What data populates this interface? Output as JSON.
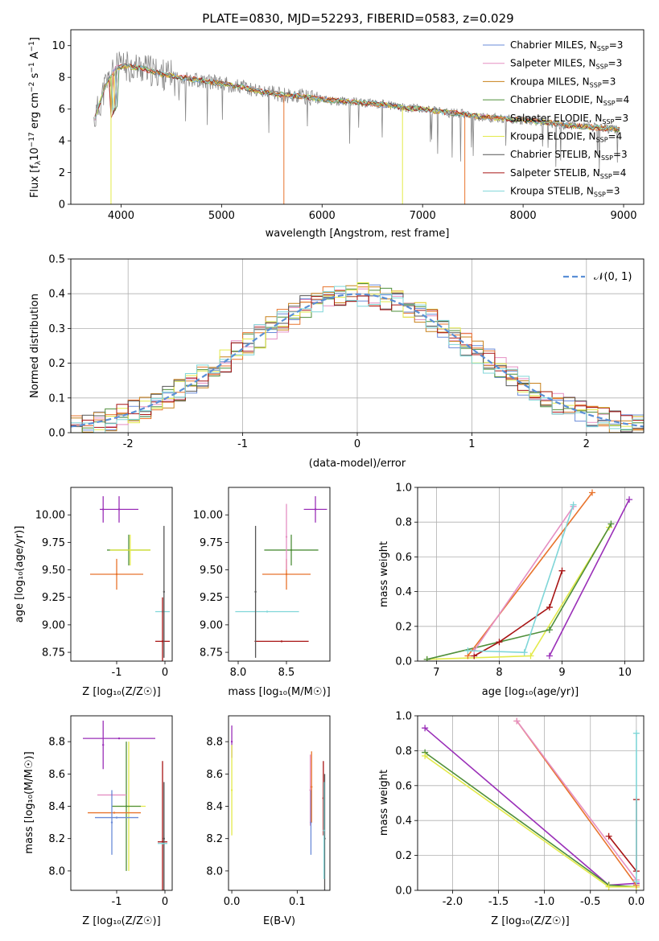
{
  "title": "PLATE=0830, MJD=52293, FIBERID=0583, z=0.029",
  "models": [
    {
      "name": "Chabrier MILES",
      "nssp": "3",
      "color": "#6a8bd8"
    },
    {
      "name": "Salpeter MILES",
      "nssp": "3",
      "color": "#e58fc2"
    },
    {
      "name": "Kroupa MILES",
      "nssp": "3",
      "color": "#c8801a"
    },
    {
      "name": "Chabrier ELODIE",
      "nssp": "4",
      "color": "#4f8f3a"
    },
    {
      "name": "Salpeter ELODIE",
      "nssp": "3",
      "color": "#e8742d"
    },
    {
      "name": "Kroupa ELODIE",
      "nssp": "4",
      "color": "#e3ea4a"
    },
    {
      "name": "Chabrier STELIB",
      "nssp": "3",
      "color": "#555555"
    },
    {
      "name": "Salpeter STELIB",
      "nssp": "4",
      "color": "#a81414"
    },
    {
      "name": "Kroupa STELIB",
      "nssp": "3",
      "color": "#7fd6d8"
    }
  ],
  "chart_data": [
    {
      "panel": "spectrum",
      "type": "line",
      "xlabel": "wavelength [Angstrom, rest frame]",
      "ylabel": "Flux [f_λ 10^-17 erg cm^-2 s^-1 A^-1]",
      "xlim": [
        3500,
        9200
      ],
      "ylim": [
        0,
        11
      ],
      "xticks": [
        4000,
        5000,
        6000,
        7000,
        8000,
        9000
      ],
      "yticks": [
        0,
        2,
        4,
        6,
        8,
        10
      ],
      "legend_position": "top-right",
      "continuum_x": [
        3730,
        3850,
        3950,
        4050,
        4200,
        4400,
        4600,
        4800,
        5000,
        5200,
        5400,
        5600,
        5800,
        6000,
        6200,
        6400,
        6600,
        6800,
        7000,
        7200,
        7400,
        7600,
        7800,
        8000,
        8200,
        8400,
        8600,
        8800,
        8950
      ],
      "continuum_y": [
        5.2,
        7.6,
        8.6,
        8.7,
        8.6,
        8.2,
        8.0,
        7.8,
        7.6,
        7.4,
        7.1,
        6.9,
        6.8,
        6.6,
        6.5,
        6.4,
        6.3,
        6.1,
        6.0,
        5.8,
        5.7,
        5.5,
        5.4,
        5.3,
        5.2,
        5.0,
        4.9,
        4.8,
        4.7
      ],
      "model_dips": [
        {
          "x": 5620,
          "y": 0.0,
          "color": "#e8742d"
        },
        {
          "x": 6800,
          "y": 0.0,
          "color": "#e3ea4a"
        },
        {
          "x": 7420,
          "y": 0.0,
          "color": "#e8742d"
        },
        {
          "x": 3900,
          "y": 0.0,
          "color": "#e3ea4a"
        }
      ]
    },
    {
      "panel": "residuals",
      "type": "line",
      "xlabel": "(data-model)/error",
      "ylabel": "Normed distribution",
      "xlim": [
        -2.5,
        2.5
      ],
      "ylim": [
        0,
        0.5
      ],
      "xticks": [
        -2,
        -1,
        0,
        1,
        2
      ],
      "yticks": [
        0.0,
        0.1,
        0.2,
        0.3,
        0.4,
        0.5
      ],
      "gaussian_label": "𝒩(0, 1)",
      "legend_position": "top-right",
      "grid": true
    },
    {
      "panel": "age-vs-Z",
      "type": "scatter",
      "xlabel": "Z [log10(Z/Z☉)]",
      "ylabel": "age [log10(age/yr)]",
      "xlim": [
        -1.95,
        0.15
      ],
      "ylim": [
        8.67,
        10.25
      ],
      "xticks": [
        -1,
        0
      ],
      "yticks": [
        8.75,
        9.0,
        9.25,
        9.5,
        9.75,
        10.0
      ],
      "points": [
        {
          "x": -0.95,
          "y": 10.05,
          "xerr": 0.4,
          "yerr": 0.12,
          "color": "#9a2fb8"
        },
        {
          "x": -1.28,
          "y": 10.05,
          "xerr": 0.0,
          "yerr": 0.12,
          "color": "#9a2fb8"
        },
        {
          "x": -0.75,
          "y": 9.68,
          "xerr": 0.45,
          "yerr": 0.14,
          "color": "#4f8f3a"
        },
        {
          "x": -0.72,
          "y": 9.68,
          "xerr": 0.42,
          "yerr": 0.14,
          "color": "#e3ea4a"
        },
        {
          "x": -1.0,
          "y": 9.46,
          "xerr": 0.55,
          "yerr": 0.14,
          "color": "#e8742d"
        },
        {
          "x": -0.05,
          "y": 9.12,
          "xerr": 0.15,
          "yerr": 0.0,
          "color": "#7fd6d8"
        },
        {
          "x": -0.05,
          "y": 8.85,
          "xerr": 0.15,
          "yerr": 0.4,
          "color": "#a81414"
        },
        {
          "x": -0.02,
          "y": 9.3,
          "xerr": 0.0,
          "yerr": 0.6,
          "color": "#555555"
        }
      ]
    },
    {
      "panel": "age-vs-mass",
      "type": "scatter",
      "xlabel": "mass [log10(M/M☉)]",
      "ylabel": "",
      "xlim": [
        7.9,
        8.95
      ],
      "ylim": [
        8.67,
        10.25
      ],
      "xticks": [
        8.0,
        8.5
      ],
      "yticks": [
        8.75,
        9.0,
        9.25,
        9.5,
        9.75,
        10.0
      ],
      "points": [
        {
          "x": 8.8,
          "y": 10.05,
          "xerr": 0.12,
          "yerr": 0.12,
          "color": "#9a2fb8"
        },
        {
          "x": 8.55,
          "y": 9.68,
          "xerr": 0.28,
          "yerr": 0.14,
          "color": "#4f8f3a"
        },
        {
          "x": 8.5,
          "y": 9.46,
          "xerr": 0.25,
          "yerr": 0.14,
          "color": "#e8742d"
        },
        {
          "x": 8.3,
          "y": 9.12,
          "xerr": 0.33,
          "yerr": 0.0,
          "color": "#7fd6d8"
        },
        {
          "x": 8.45,
          "y": 8.85,
          "xerr": 0.28,
          "yerr": 0.0,
          "color": "#a81414"
        },
        {
          "x": 8.18,
          "y": 9.3,
          "xerr": 0.0,
          "yerr": 0.6,
          "color": "#555555"
        },
        {
          "x": 8.5,
          "y": 9.8,
          "xerr": 0.0,
          "yerr": 0.3,
          "color": "#e58fc2"
        }
      ]
    },
    {
      "panel": "mass-weight-vs-age",
      "type": "line",
      "xlabel": "age [log10(age/yr)]",
      "ylabel": "mass weight",
      "xlim": [
        6.7,
        10.3
      ],
      "ylim": [
        0,
        1
      ],
      "xticks": [
        7,
        8,
        9,
        10
      ],
      "yticks": [
        0.0,
        0.2,
        0.4,
        0.6,
        0.8,
        1.0
      ],
      "grid": true,
      "series": [
        {
          "color": "#e3ea4a",
          "x": [
            6.85,
            8.5,
            9.75
          ],
          "y": [
            0.01,
            0.03,
            0.77
          ]
        },
        {
          "color": "#4f8f3a",
          "x": [
            6.85,
            8.8,
            9.78
          ],
          "y": [
            0.01,
            0.18,
            0.79
          ]
        },
        {
          "color": "#9a2fb8",
          "x": [
            8.8,
            10.07
          ],
          "y": [
            0.03,
            0.93
          ]
        },
        {
          "color": "#a81414",
          "x": [
            7.6,
            8.0,
            8.8,
            9.0
          ],
          "y": [
            0.03,
            0.11,
            0.31,
            0.52
          ]
        },
        {
          "color": "#e8742d",
          "x": [
            7.5,
            9.48
          ],
          "y": [
            0.03,
            0.97
          ]
        },
        {
          "color": "#e58fc2",
          "x": [
            7.6,
            9.18
          ],
          "y": [
            0.06,
            0.89
          ]
        },
        {
          "color": "#7fd6d8",
          "x": [
            7.5,
            8.4,
            9.18
          ],
          "y": [
            0.06,
            0.05,
            0.9
          ]
        }
      ]
    },
    {
      "panel": "mass-vs-Z",
      "type": "scatter",
      "xlabel": "Z [log10(Z/Z☉)]",
      "ylabel": "mass [log10(M/M☉)]",
      "xlim": [
        -1.95,
        0.15
      ],
      "ylim": [
        7.88,
        8.96
      ],
      "xticks": [
        -1,
        0
      ],
      "yticks": [
        8.0,
        8.2,
        8.4,
        8.6,
        8.8
      ],
      "points": [
        {
          "x": -0.95,
          "y": 8.82,
          "xerr": 0.75,
          "yerr": 0.0,
          "color": "#9a2fb8"
        },
        {
          "x": -1.28,
          "y": 8.78,
          "xerr": 0.0,
          "yerr": 0.15,
          "color": "#9a2fb8"
        },
        {
          "x": -0.75,
          "y": 8.4,
          "xerr": 0.35,
          "yerr": 0.4,
          "color": "#e3ea4a"
        },
        {
          "x": -0.8,
          "y": 8.4,
          "xerr": 0.3,
          "yerr": 0.4,
          "color": "#4f8f3a"
        },
        {
          "x": -1.1,
          "y": 8.47,
          "xerr": 0.3,
          "yerr": 0.0,
          "color": "#e58fc2"
        },
        {
          "x": -1.05,
          "y": 8.36,
          "xerr": 0.55,
          "yerr": 0.0,
          "color": "#e8742d"
        },
        {
          "x": -1.0,
          "y": 8.33,
          "xerr": 0.45,
          "yerr": 0.0,
          "color": "#6a8bd8"
        },
        {
          "x": -1.1,
          "y": 8.3,
          "xerr": 0.0,
          "yerr": 0.2,
          "color": "#6a8bd8"
        },
        {
          "x": -0.05,
          "y": 8.18,
          "xerr": 0.1,
          "yerr": 0.5,
          "color": "#a81414"
        },
        {
          "x": -0.02,
          "y": 8.2,
          "xerr": 0.0,
          "yerr": 0.35,
          "color": "#555555"
        },
        {
          "x": -0.05,
          "y": 8.17,
          "xerr": 0.1,
          "yerr": 0.0,
          "color": "#7fd6d8"
        }
      ]
    },
    {
      "panel": "mass-vs-EBV",
      "type": "scatter",
      "xlabel": "E(B-V)",
      "ylabel": "",
      "xlim": [
        -0.005,
        0.15
      ],
      "ylim": [
        7.88,
        8.96
      ],
      "xticks": [
        0.0,
        0.1
      ],
      "yticks": [
        8.0,
        8.2,
        8.4,
        8.6,
        8.8
      ],
      "points": [
        {
          "x": 0.0,
          "y": 8.8,
          "xerr": 0.0,
          "yerr": 0.1,
          "color": "#9a2fb8"
        },
        {
          "x": 0.0,
          "y": 8.5,
          "xerr": 0.0,
          "yerr": 0.28,
          "color": "#e3ea4a"
        },
        {
          "x": 0.12,
          "y": 8.5,
          "xerr": 0.0,
          "yerr": 0.22,
          "color": "#e58fc2"
        },
        {
          "x": 0.121,
          "y": 8.3,
          "xerr": 0.0,
          "yerr": 0.2,
          "color": "#6a8bd8"
        },
        {
          "x": 0.122,
          "y": 8.52,
          "xerr": 0.0,
          "yerr": 0.22,
          "color": "#e8742d"
        },
        {
          "x": 0.14,
          "y": 8.45,
          "xerr": 0.0,
          "yerr": 0.23,
          "color": "#a81414"
        },
        {
          "x": 0.142,
          "y": 8.2,
          "xerr": 0.0,
          "yerr": 0.4,
          "color": "#555555"
        },
        {
          "x": 0.141,
          "y": 8.25,
          "xerr": 0.0,
          "yerr": 0.3,
          "color": "#7fd6d8"
        }
      ]
    },
    {
      "panel": "mass-weight-vs-Z",
      "type": "line",
      "xlabel": "Z [log10(Z/Z☉)]",
      "ylabel": "mass weight",
      "xlim": [
        -2.38,
        0.08
      ],
      "ylim": [
        0,
        1
      ],
      "xticks": [
        -2.0,
        -1.5,
        -1.0,
        -0.5,
        0.0
      ],
      "yticks": [
        0.0,
        0.2,
        0.4,
        0.6,
        0.8,
        1.0
      ],
      "grid": true,
      "series": [
        {
          "color": "#9a2fb8",
          "x": [
            -2.3,
            -0.3,
            0.0
          ],
          "y": [
            0.93,
            0.03,
            0.04
          ]
        },
        {
          "color": "#4f8f3a",
          "x": [
            -2.3,
            -0.3,
            0.0
          ],
          "y": [
            0.79,
            0.03,
            0.02
          ]
        },
        {
          "color": "#e3ea4a",
          "x": [
            -2.3,
            -0.3,
            0.0
          ],
          "y": [
            0.77,
            0.02,
            0.02
          ]
        },
        {
          "color": "#e8742d",
          "x": [
            -1.3,
            0.0
          ],
          "y": [
            0.97,
            0.03
          ]
        },
        {
          "color": "#e58fc2",
          "x": [
            -1.3,
            0.0
          ],
          "y": [
            0.97,
            0.06
          ]
        },
        {
          "color": "#a81414",
          "x": [
            -0.3,
            0.0,
            0.0
          ],
          "y": [
            0.31,
            0.11,
            0.52
          ]
        },
        {
          "color": "#7fd6d8",
          "x": [
            0.0,
            0.0
          ],
          "y": [
            0.05,
            0.9
          ]
        }
      ]
    }
  ]
}
